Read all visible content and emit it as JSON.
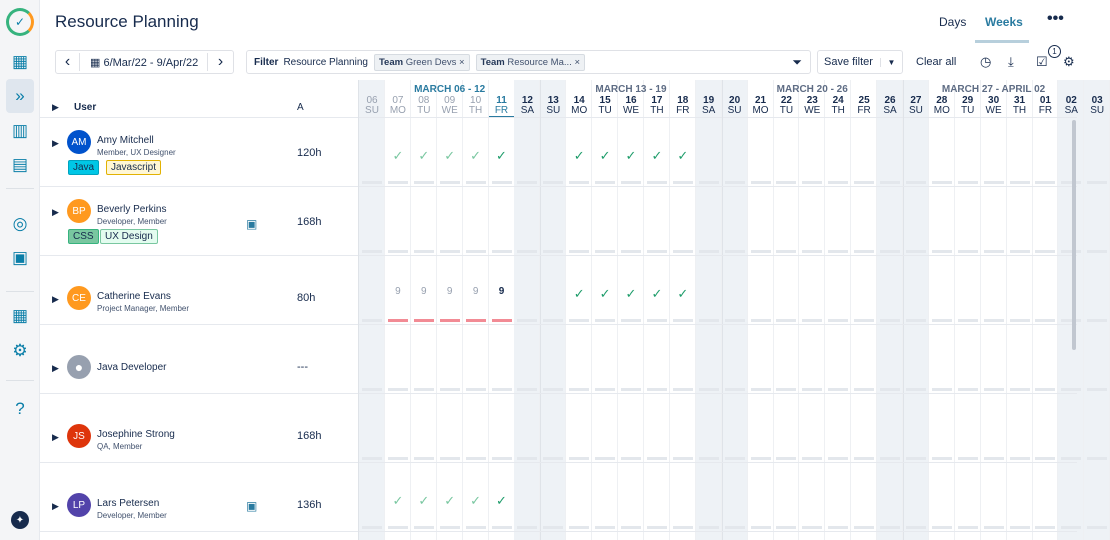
{
  "header": {
    "title": "Resource Planning",
    "tabs": [
      {
        "label": "Days"
      },
      {
        "label": "Weeks",
        "active": true
      }
    ],
    "more": "•••"
  },
  "sidebar": {
    "items": [
      "logo",
      "calendar-icon",
      "planning-icon",
      "folder-chart-icon",
      "report-icon",
      "team-icon",
      "profile-icon",
      "apps-icon",
      "settings-icon",
      "help-icon",
      "pin-icon"
    ]
  },
  "toolbar": {
    "prev": "‹",
    "next": "›",
    "date_range": "6/Mar/22 - 9/Apr/22",
    "filter_label": "Filter",
    "filter_name": "Resource Planning",
    "chips": [
      {
        "key": "Team",
        "value": "Green Devs"
      },
      {
        "key": "Team",
        "value": "Resource Ma..."
      }
    ],
    "save_filter": "Save filter",
    "clear_all": "Clear all",
    "notif_count": "1"
  },
  "table": {
    "col_user": "User",
    "col_a": "A"
  },
  "weeks": [
    {
      "label": "MARCH 06 - 12"
    },
    {
      "label": "MARCH 13 - 19"
    },
    {
      "label": "MARCH 20 - 26"
    },
    {
      "label": "MARCH 27 - APRIL 02"
    }
  ],
  "days": [
    [
      "06",
      "SU"
    ],
    [
      "07",
      "MO"
    ],
    [
      "08",
      "TU"
    ],
    [
      "09",
      "WE"
    ],
    [
      "10",
      "TH"
    ],
    [
      "11",
      "FR"
    ],
    [
      "12",
      "SA"
    ],
    [
      "13",
      "SU"
    ],
    [
      "14",
      "MO"
    ],
    [
      "15",
      "TU"
    ],
    [
      "16",
      "WE"
    ],
    [
      "17",
      "TH"
    ],
    [
      "18",
      "FR"
    ],
    [
      "19",
      "SA"
    ],
    [
      "20",
      "SU"
    ],
    [
      "21",
      "MO"
    ],
    [
      "22",
      "TU"
    ],
    [
      "23",
      "WE"
    ],
    [
      "24",
      "TH"
    ],
    [
      "25",
      "FR"
    ],
    [
      "26",
      "SA"
    ],
    [
      "27",
      "SU"
    ],
    [
      "28",
      "MO"
    ],
    [
      "29",
      "TU"
    ],
    [
      "30",
      "WE"
    ],
    [
      "31",
      "TH"
    ],
    [
      "01",
      "FR"
    ],
    [
      "02",
      "SA"
    ],
    [
      "03",
      "SU"
    ]
  ],
  "today_index": 5,
  "users": [
    {
      "initials": "AM",
      "name": "Amy Mitchell",
      "role": "Member, UX Designer",
      "hours": "120h",
      "color": "#0052cc",
      "tags": [
        {
          "label": "Java",
          "bg": "#00c7e6",
          "border": "#00a3bf"
        },
        {
          "label": "Javascript",
          "bg": "#fff7d6",
          "border": "#e2b203"
        }
      ],
      "cells": {
        "1": "✓p",
        "2": "✓p",
        "3": "✓p",
        "4": "✓p",
        "5": "✓",
        "8": "✓",
        "9": "✓",
        "10": "✓",
        "11": "✓",
        "12": "✓"
      }
    },
    {
      "initials": "BP",
      "name": "Beverly Perkins",
      "role": "Developer, Member",
      "hours": "168h",
      "color": "#ff991f",
      "tags": [
        {
          "label": "CSS",
          "bg": "#79c7a0",
          "border": "#36b37e"
        },
        {
          "label": "UX Design",
          "bg": "#e3fcef",
          "border": "#79c7a0"
        }
      ],
      "badge": true,
      "cells": {}
    },
    {
      "initials": "CE",
      "name": "Catherine Evans",
      "role": "Project Manager, Member",
      "hours": "80h",
      "color": "#ff991f",
      "tags": [],
      "cells": {
        "1": "9p",
        "2": "9p",
        "3": "9p",
        "4": "9p",
        "5": "9",
        "8": "✓",
        "9": "✓",
        "10": "✓",
        "11": "✓",
        "12": "✓"
      },
      "overbooked": [
        1,
        2,
        3,
        4,
        5
      ]
    },
    {
      "initials": "",
      "name": "Java Developer",
      "role": "",
      "hours": "---",
      "color": "#97a0af",
      "tags": [],
      "cells": {}
    },
    {
      "initials": "JS",
      "name": "Josephine Strong",
      "role": "QA, Member",
      "hours": "168h",
      "color": "#de350b",
      "tags": [],
      "cells": {}
    },
    {
      "initials": "LP",
      "name": "Lars Petersen",
      "role": "Developer, Member",
      "hours": "136h",
      "color": "#5243aa",
      "tags": [],
      "badge": true,
      "cells": {
        "1": "✓p",
        "2": "✓p",
        "3": "✓p",
        "4": "✓p",
        "5": "✓"
      }
    }
  ],
  "colors": {
    "accent": "#2a7ba0",
    "check": "#36b37e",
    "overbooked": "#f28b95"
  }
}
